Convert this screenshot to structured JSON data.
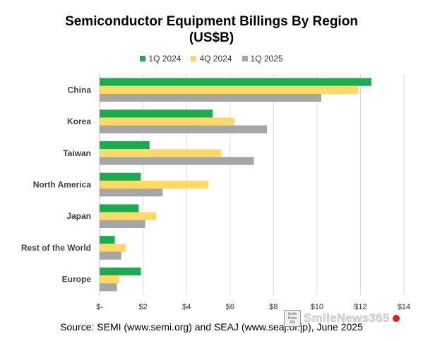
{
  "watermark": {
    "badge_lines": [
      "Smile",
      "News",
      "365"
    ],
    "text": "SmileNews365"
  },
  "chart_data": {
    "type": "bar",
    "orientation": "horizontal",
    "title": "Semiconductor Equipment Billings By Region",
    "subtitle": "(US$B)",
    "source": "Source: SEMI (www.semi.org) and SEAJ (www.seaj.or.jp), June 2025",
    "categories": [
      "China",
      "Korea",
      "Taiwan",
      "North America",
      "Japan",
      "Rest of the World",
      "Europe"
    ],
    "series": [
      {
        "name": "1Q 2024",
        "color": "#1aad4e",
        "values": [
          12.5,
          5.2,
          2.3,
          1.9,
          1.8,
          0.7,
          1.9
        ]
      },
      {
        "name": "4Q 2024",
        "color": "#ffd966",
        "values": [
          11.9,
          6.2,
          5.6,
          5.0,
          2.6,
          1.2,
          0.9
        ]
      },
      {
        "name": "1Q 2025",
        "color": "#a6a6a6",
        "values": [
          10.2,
          7.7,
          7.1,
          2.9,
          2.1,
          1.0,
          0.8
        ]
      }
    ],
    "xlim": [
      0,
      14
    ],
    "x_ticks": [
      0,
      2,
      4,
      6,
      8,
      10,
      12,
      14
    ],
    "x_tick_labels": [
      "$-",
      "$2",
      "$4",
      "$6",
      "$8",
      "$10",
      "$12",
      "$14"
    ],
    "grid": "vertical",
    "legend_position": "top"
  }
}
